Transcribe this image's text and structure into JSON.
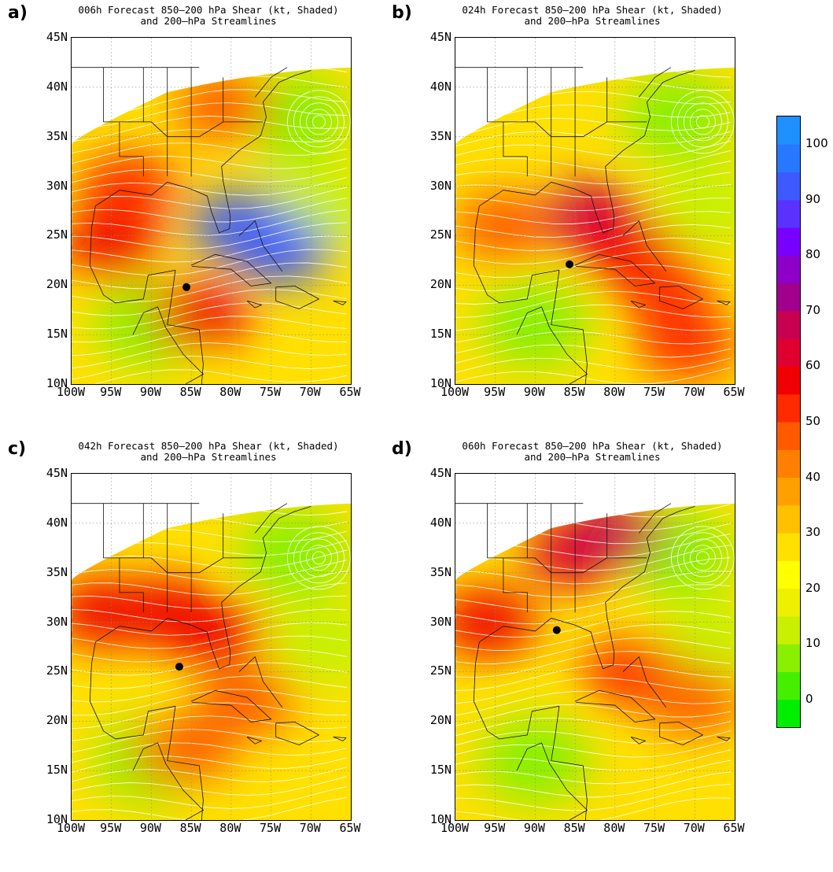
{
  "figure": {
    "panels": [
      {
        "letter": "a)",
        "title_line1": "006h Forecast 850–200 hPa Shear (kt, Shaded)",
        "title_line2": "and 200–hPa Streamlines",
        "storm_center": {
          "lon": -85.6,
          "lat": 19.8
        },
        "high_shear": [
          {
            "lon": -79,
            "lat": 26,
            "level": 90
          },
          {
            "lon": -74,
            "lat": 23.5,
            "level": 90
          },
          {
            "lon": -95,
            "lat": 24,
            "level": 55
          },
          {
            "lon": -93,
            "lat": 30,
            "level": 50
          },
          {
            "lon": -84,
            "lat": 17,
            "level": 55
          },
          {
            "lon": -81,
            "lat": 38,
            "level": 45
          }
        ]
      },
      {
        "letter": "b)",
        "title_line1": "024h Forecast 850–200 hPa Shear (kt, Shaded)",
        "title_line2": "and 200–hPa Streamlines",
        "storm_center": {
          "lon": -85.7,
          "lat": 22.1
        },
        "high_shear": [
          {
            "lon": -83,
            "lat": 27,
            "level": 65
          },
          {
            "lon": -79,
            "lat": 24,
            "level": 55
          },
          {
            "lon": -74,
            "lat": 20,
            "level": 50
          },
          {
            "lon": -71,
            "lat": 14,
            "level": 50
          },
          {
            "lon": -94,
            "lat": 26,
            "level": 45
          }
        ]
      },
      {
        "letter": "c)",
        "title_line1": "042h Forecast 850–200 hPa Shear (kt, Shaded)",
        "title_line2": "and 200–hPa Streamlines",
        "storm_center": {
          "lon": -86.5,
          "lat": 25.5
        },
        "high_shear": [
          {
            "lon": -96,
            "lat": 31,
            "level": 55
          },
          {
            "lon": -88,
            "lat": 31,
            "level": 55
          },
          {
            "lon": -82,
            "lat": 29,
            "level": 55
          },
          {
            "lon": -86,
            "lat": 17,
            "level": 45
          },
          {
            "lon": -78,
            "lat": 22,
            "level": 45
          }
        ]
      },
      {
        "letter": "d)",
        "title_line1": "060h Forecast 850–200 hPa Shear (kt, Shaded)",
        "title_line2": "and 200–hPa Streamlines",
        "storm_center": {
          "lon": -87.3,
          "lat": 29.2
        },
        "high_shear": [
          {
            "lon": -85,
            "lat": 37,
            "level": 60
          },
          {
            "lon": -80,
            "lat": 39,
            "level": 70
          },
          {
            "lon": -96,
            "lat": 30,
            "level": 55
          },
          {
            "lon": -78,
            "lat": 25,
            "level": 50
          },
          {
            "lon": -70,
            "lat": 22,
            "level": 45
          }
        ]
      }
    ],
    "lat_labels": [
      "45N",
      "40N",
      "35N",
      "30N",
      "25N",
      "20N",
      "15N",
      "10N"
    ],
    "lon_labels": [
      "100W",
      "95W",
      "90W",
      "85W",
      "80W",
      "75W",
      "70W",
      "65W"
    ],
    "extent": {
      "lon_min": -100,
      "lon_max": -65,
      "lat_min": 10,
      "lat_max": 45
    },
    "colorbar": {
      "labels": [
        "100",
        "90",
        "80",
        "70",
        "60",
        "50",
        "40",
        "30",
        "20",
        "10",
        "0"
      ],
      "min": -5,
      "max": 105,
      "colors": [
        "#00ee00",
        "#44f000",
        "#88f000",
        "#c8f000",
        "#eef000",
        "#ffff00",
        "#ffe000",
        "#ffc000",
        "#ffa000",
        "#ff8000",
        "#ff5a00",
        "#ff2a00",
        "#f00000",
        "#e00030",
        "#c80050",
        "#a0008c",
        "#8c00c8",
        "#7800ff",
        "#5a32ff",
        "#3c5aff",
        "#2878ff",
        "#1e90ff"
      ]
    }
  }
}
